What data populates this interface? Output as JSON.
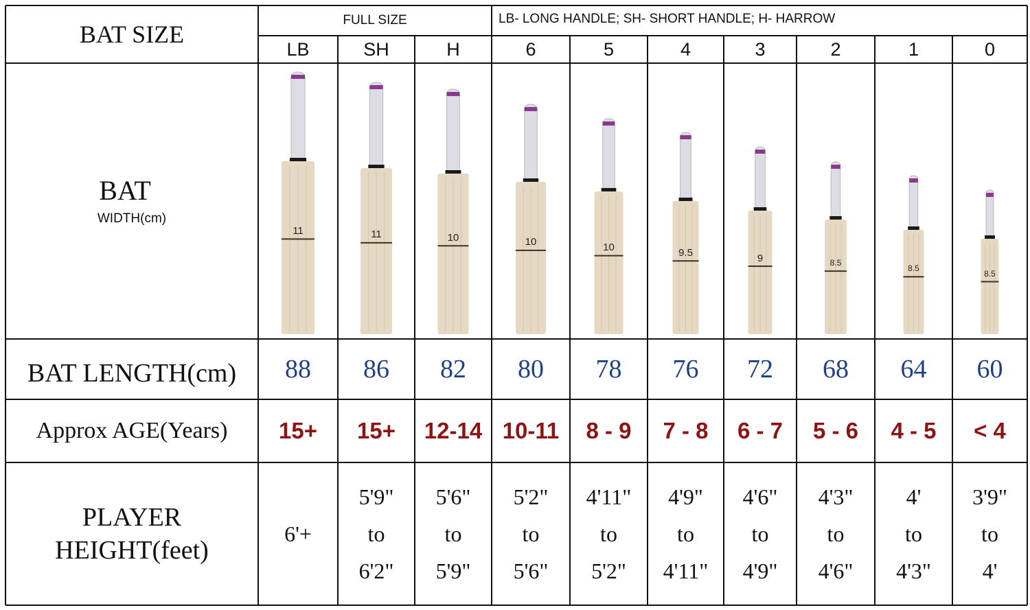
{
  "header": {
    "bat_size_label": "BAT SIZE",
    "full_size_label": "FULL SIZE",
    "legend_label": "LB- LONG HANDLE; SH- SHORT HANDLE; H- HARROW"
  },
  "row_labels": {
    "bat": "BAT",
    "width_sub": "WIDTH(cm)",
    "length": "BAT LENGTH(cm)",
    "age": "Approx AGE(Years)",
    "height_line1": "PLAYER",
    "height_line2": "HEIGHT(feet)"
  },
  "sizes": [
    {
      "code": "LB",
      "width_cm": "11",
      "length_cm": "88",
      "age": "15+",
      "height_from": "6'+",
      "height_to_word": "",
      "height_to": ""
    },
    {
      "code": "SH",
      "width_cm": "11",
      "length_cm": "86",
      "age": "15+",
      "height_from": "5'9\"",
      "height_to_word": "to",
      "height_to": "6'2\""
    },
    {
      "code": "H",
      "width_cm": "10",
      "length_cm": "82",
      "age": "12-14",
      "height_from": "5'6\"",
      "height_to_word": "to",
      "height_to": "5'9\""
    },
    {
      "code": "6",
      "width_cm": "10",
      "length_cm": "80",
      "age": "10-11",
      "height_from": "5'2\"",
      "height_to_word": "to",
      "height_to": "5'6\""
    },
    {
      "code": "5",
      "width_cm": "10",
      "length_cm": "78",
      "age": "8 - 9",
      "height_from": "4'11\"",
      "height_to_word": "to",
      "height_to": "5'2\""
    },
    {
      "code": "4",
      "width_cm": "9.5",
      "length_cm": "76",
      "age": "7 - 8",
      "height_from": "4'9\"",
      "height_to_word": "to",
      "height_to": "4'11\""
    },
    {
      "code": "3",
      "width_cm": "9",
      "length_cm": "72",
      "age": "6 - 7",
      "height_from": "4'6\"",
      "height_to_word": "to",
      "height_to": "4'9\""
    },
    {
      "code": "2",
      "width_cm": "8.5",
      "length_cm": "68",
      "age": "5 - 6",
      "height_from": "4'3\"",
      "height_to_word": "to",
      "height_to": "4'6\""
    },
    {
      "code": "1",
      "width_cm": "8.5",
      "length_cm": "64",
      "age": "4 - 5",
      "height_from": "4'",
      "height_to_word": "to",
      "height_to": "4'3\""
    },
    {
      "code": "0",
      "width_cm": "8.5",
      "length_cm": "60",
      "age": "< 4",
      "height_from": "3'9\"",
      "height_to_word": "to",
      "height_to": "4'"
    }
  ],
  "colors": {
    "grid": "#111111",
    "blade": "#e6d9c3",
    "blade_grain": "#d6c6ab",
    "grip": "#dcdce2",
    "grip_band": "#8a3a8c",
    "length_text": "#1f3f86",
    "age_text": "#8c1414"
  }
}
